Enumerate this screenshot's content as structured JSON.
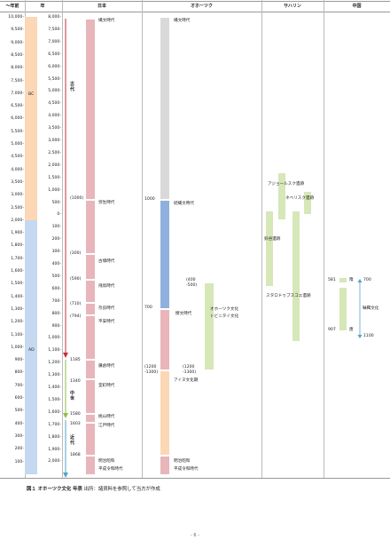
{
  "headers": {
    "approx_year": "〜年前",
    "year": "年",
    "japan": "日本",
    "okhotsk": "オホーツク",
    "sakhalin": "サハリン",
    "china": "中国"
  },
  "years_ago_ticks": [
    "10,000-",
    "9,500-",
    "9,000-",
    "8,500-",
    "8,000-",
    "7,500-",
    "7,000-",
    "6,500-",
    "6,000-",
    "5,500-",
    "5,000-",
    "4,500-",
    "4,000-",
    "3,500-",
    "3,000-",
    "2,500-",
    "2,000-",
    "1,900-",
    "1,800-",
    "1,700-",
    "1,600-",
    "1,500-",
    "1,400-",
    "1,300-",
    "1,200-",
    "1,100-",
    "1,000-",
    "900-",
    "800-",
    "700-",
    "600-",
    "500-",
    "400-",
    "300-",
    "200-",
    "100-"
  ],
  "year_ticks": [
    "8,000-",
    "7,500-",
    "7,000-",
    "6,500-",
    "6,000-",
    "5,500-",
    "5,000-",
    "4,500-",
    "4,000-",
    "3,500-",
    "3,000-",
    "2,500-",
    "2,000-",
    "1,500-",
    "1,000-",
    "500-",
    "0-",
    "100-",
    "200-",
    "300-",
    "400-",
    "500-",
    "600-",
    "700-",
    "800-",
    "900-",
    "1,000-",
    "1,100-",
    "1,200-",
    "1,300-",
    "1,400-",
    "1,500-",
    "1,600-",
    "1,700-",
    "1,800-",
    "1,900-",
    "2,000-"
  ],
  "era_bc": "BC",
  "era_ad": "AD",
  "japan_eras": {
    "ancient": "古代",
    "medieval": "中世",
    "modern": "近代"
  },
  "japan_periods": [
    "縄文時代",
    "弥生時代",
    "古墳時代",
    "飛鳥時代",
    "奈良時代",
    "平安時代",
    "鎌倉時代",
    "室町時代",
    "桃山時代",
    "江戸時代",
    "明治昭和",
    "平成令和時代"
  ],
  "japan_years": [
    "(1000)",
    "(300)",
    "(590)",
    "(710)",
    "(794)",
    "1185",
    "1340",
    "1580",
    "1603",
    "1868"
  ],
  "okhotsk": {
    "jomon": "縄文時代",
    "zoku_jomon": "続縄文時代",
    "year_1000": "1000",
    "year_700": "700",
    "satsumon": "擦文時代",
    "range1": "(400\n-500)",
    "okhotsk_culture": "オホーツク文化",
    "tobinitai": "トビニタイ文化",
    "range2": "(1200\n-1300)",
    "range3": "(1200\n-1300)",
    "ainu": "アイヌ文化期",
    "meiji": "明治昭和",
    "heisei": "平成令和時代"
  },
  "sakhalin": {
    "ajorsk": "アジョールスク遺跡",
    "neveliska": "ネベリスク遺跡",
    "susuya": "鈴谷遺跡",
    "starodubskoe": "スタロドゥブスコエ遺跡"
  },
  "china": {
    "sui": "隋",
    "tang": "唐",
    "y581": "581",
    "y700": "700",
    "y907": "907",
    "y1100": "1100",
    "mohe": "靺鞨文化"
  },
  "caption": {
    "bold": "図１ オホーツク文化 年表",
    "rest": " 出所：諸資料を参照して当方が作成"
  },
  "page_number": "- 6 -",
  "colors": {
    "japan_bar": "#e8b5bb",
    "bc": "#fbd7b6",
    "ad": "#c5d8ef",
    "jomon_gray": "#d9d9d9",
    "zoku_blue": "#8fb0de",
    "green": "#d6e7b8",
    "red_arrow": "#c0303a",
    "green_arrow": "#8dbe45",
    "blue_arrow": "#4fa6c9"
  }
}
